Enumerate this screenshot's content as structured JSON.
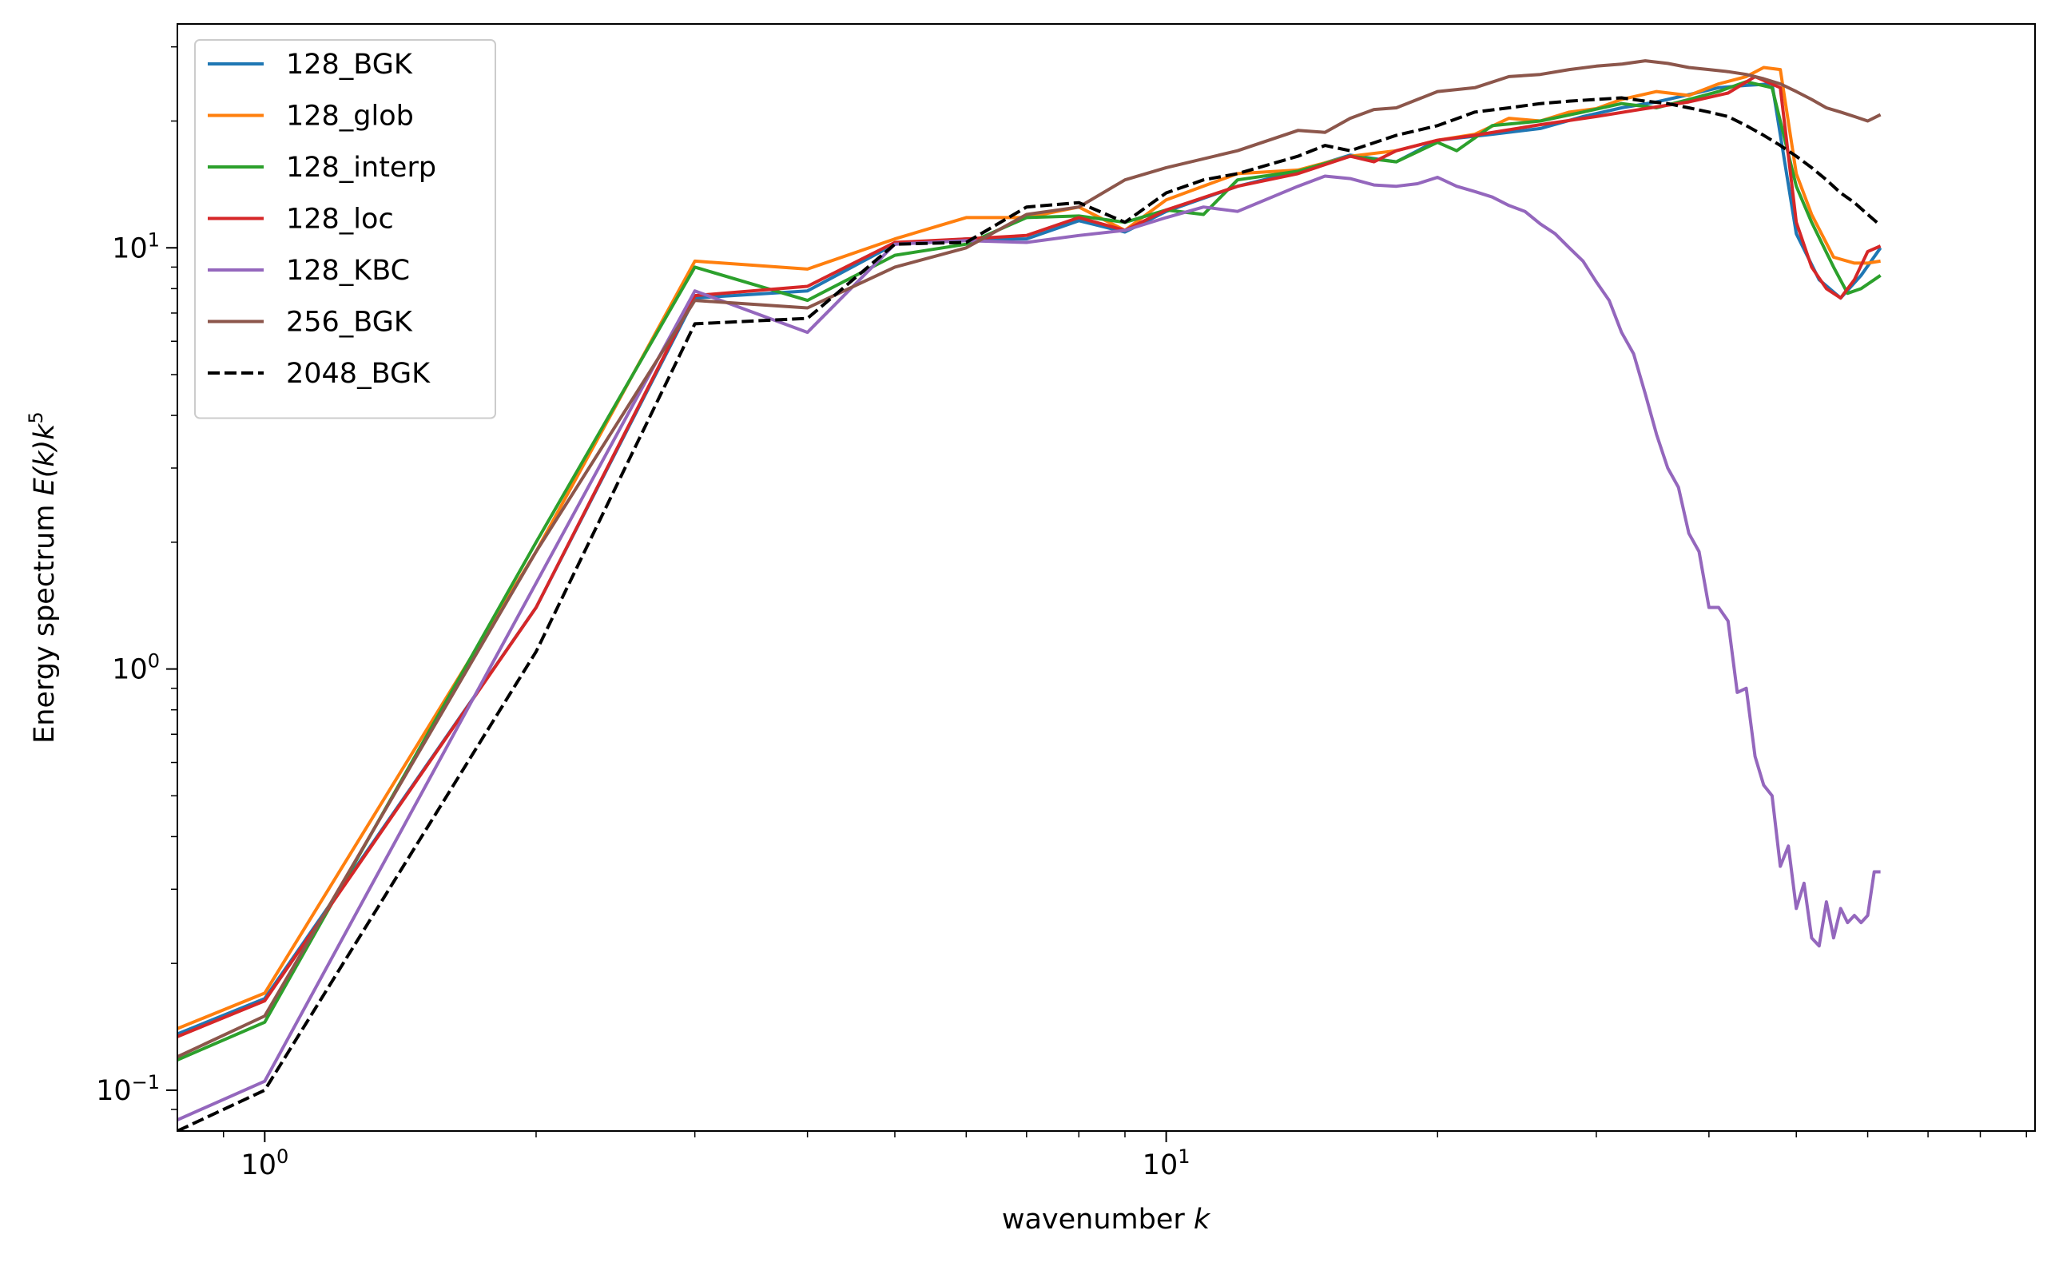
{
  "chart_data": {
    "type": "line",
    "xscale": "log",
    "yscale": "log",
    "xlim": [
      0.8,
      92
    ],
    "ylim": [
      0.08,
      34
    ],
    "xlabel_prefix": "wavenumber ",
    "xlabel_var": "k",
    "ylabel_prefix": "Energy spectrum ",
    "ylabel_var": "E(k)k",
    "ylabel_sup": "5",
    "legend_position": "upper-left",
    "grid": false,
    "x_ticks": [
      {
        "value": 1,
        "base": "10",
        "exp": "0"
      },
      {
        "value": 10,
        "base": "10",
        "exp": "1"
      }
    ],
    "y_ticks": [
      {
        "value": 0.1,
        "base": "10",
        "exp": "−1"
      },
      {
        "value": 1,
        "base": "10",
        "exp": "0"
      },
      {
        "value": 10,
        "base": "10",
        "exp": "1"
      }
    ],
    "series": [
      {
        "name": "128_BGK",
        "color": "#1f77b4",
        "dash": false,
        "x": [
          0.8,
          1,
          2,
          3,
          4,
          5,
          6,
          7,
          8,
          9,
          10,
          12,
          14,
          16,
          18,
          20,
          23,
          26,
          29,
          32,
          35,
          38,
          41,
          44,
          47,
          50,
          53,
          56,
          59,
          62
        ],
        "y": [
          0.136,
          0.165,
          1.4,
          7.6,
          7.9,
          10.2,
          10.5,
          10.5,
          11.6,
          10.9,
          12.2,
          14.0,
          15.2,
          16.6,
          16.0,
          18.0,
          18.6,
          19.2,
          20.5,
          21.5,
          22.2,
          23.1,
          24.0,
          24.3,
          24.5,
          10.8,
          8.4,
          7.6,
          8.6,
          10.0
        ]
      },
      {
        "name": "128_glob",
        "color": "#ff7f0e",
        "dash": false,
        "x": [
          0.8,
          1,
          2,
          3,
          4,
          5,
          6,
          7,
          8,
          9,
          10,
          12,
          14,
          16,
          18,
          20,
          22,
          24,
          26,
          28,
          30,
          32,
          35,
          38,
          41,
          44,
          46,
          48,
          50,
          52,
          55,
          58,
          60,
          62
        ],
        "y": [
          0.14,
          0.17,
          1.9,
          9.3,
          8.9,
          10.5,
          11.8,
          11.8,
          12.5,
          11.0,
          13.0,
          15.0,
          15.3,
          16.5,
          17.0,
          18.0,
          18.6,
          20.3,
          20.0,
          21.0,
          21.4,
          22.5,
          23.5,
          23.0,
          24.5,
          25.5,
          26.8,
          26.5,
          15.0,
          12.0,
          9.5,
          9.2,
          9.2,
          9.3
        ]
      },
      {
        "name": "128_interp",
        "color": "#2ca02c",
        "dash": false,
        "x": [
          0.8,
          1,
          2,
          3,
          4,
          5,
          6,
          7,
          8,
          9,
          10,
          11,
          12,
          14,
          16,
          18,
          20,
          21,
          23,
          26,
          29,
          32,
          35,
          38,
          41,
          44,
          47,
          50,
          52,
          55,
          57,
          59,
          62
        ],
        "y": [
          0.118,
          0.145,
          2.0,
          9.0,
          7.5,
          9.6,
          10.2,
          11.8,
          11.9,
          11.5,
          12.3,
          12.0,
          14.5,
          15.2,
          16.5,
          16.0,
          17.8,
          17.0,
          19.5,
          20.0,
          21.0,
          22.0,
          21.5,
          22.5,
          23.5,
          24.8,
          24.0,
          14.0,
          11.5,
          9.0,
          7.8,
          8.0,
          8.6
        ]
      },
      {
        "name": "128_loc",
        "color": "#d62728",
        "dash": false,
        "x": [
          0.8,
          1,
          2,
          3,
          4,
          5,
          6,
          7,
          8,
          9,
          10,
          12,
          14,
          16,
          17,
          18,
          20,
          22,
          26,
          30,
          34,
          38,
          42,
          45,
          48,
          50,
          52,
          54,
          56,
          58,
          60,
          62
        ],
        "y": [
          0.134,
          0.163,
          1.4,
          7.7,
          8.1,
          10.3,
          10.5,
          10.7,
          11.8,
          11.0,
          12.3,
          14.0,
          15.0,
          16.5,
          16.0,
          17.0,
          18.0,
          18.5,
          19.6,
          20.5,
          21.4,
          22.2,
          23.3,
          25.5,
          24.0,
          11.5,
          9.0,
          8.0,
          7.6,
          8.4,
          9.8,
          10.1
        ]
      },
      {
        "name": "128_KBC",
        "color": "#9467bd",
        "dash": false,
        "x": [
          0.8,
          1,
          2,
          3,
          4,
          5,
          6,
          7,
          8,
          9,
          10,
          11,
          12,
          14,
          15,
          16,
          17,
          18,
          19,
          20,
          21,
          22,
          23,
          24,
          25,
          26,
          27,
          28,
          29,
          30,
          31,
          32,
          33,
          34,
          35,
          36,
          37,
          38,
          39,
          40,
          41,
          42,
          43,
          44,
          45,
          46,
          47,
          48,
          49,
          50,
          51,
          52,
          53,
          54,
          55,
          56,
          57,
          58,
          59,
          60,
          61,
          62
        ],
        "y": [
          0.085,
          0.105,
          1.6,
          7.9,
          6.3,
          10.2,
          10.4,
          10.3,
          10.7,
          11.0,
          11.8,
          12.5,
          12.2,
          14.0,
          14.8,
          14.6,
          14.1,
          14.0,
          14.2,
          14.7,
          14.0,
          13.6,
          13.2,
          12.6,
          12.2,
          11.4,
          10.8,
          10.0,
          9.3,
          8.3,
          7.5,
          6.3,
          5.6,
          4.5,
          3.6,
          3.0,
          2.7,
          2.1,
          1.9,
          1.4,
          1.4,
          1.3,
          0.88,
          0.9,
          0.62,
          0.53,
          0.5,
          0.34,
          0.38,
          0.27,
          0.31,
          0.23,
          0.22,
          0.28,
          0.23,
          0.27,
          0.25,
          0.26,
          0.25,
          0.26,
          0.33,
          0.33
        ]
      },
      {
        "name": "256_BGK",
        "color": "#8c564b",
        "dash": false,
        "x": [
          0.8,
          1,
          2,
          3,
          4,
          5,
          6,
          7,
          8,
          9,
          10,
          12,
          14,
          15,
          16,
          17,
          18,
          20,
          22,
          24,
          26,
          28,
          30,
          32,
          34,
          36,
          38,
          40,
          42,
          44,
          46,
          48,
          50,
          52,
          54,
          56,
          58,
          60,
          62
        ],
        "y": [
          0.12,
          0.15,
          1.9,
          7.5,
          7.2,
          9.0,
          10.0,
          12.0,
          12.5,
          14.5,
          15.5,
          17.0,
          19.0,
          18.8,
          20.3,
          21.3,
          21.5,
          23.5,
          24.0,
          25.5,
          25.8,
          26.5,
          27.0,
          27.3,
          27.8,
          27.4,
          26.8,
          26.5,
          26.2,
          25.8,
          25.2,
          24.5,
          23.5,
          22.5,
          21.5,
          21.0,
          20.5,
          20.0,
          20.7
        ]
      },
      {
        "name": "2048_BGK",
        "color": "#000000",
        "dash": true,
        "x": [
          0.8,
          1,
          2,
          3,
          4,
          5,
          6,
          7,
          8,
          9,
          10,
          11,
          12,
          14,
          15,
          16,
          18,
          20,
          22,
          24,
          26,
          28,
          30,
          32,
          34,
          36,
          38,
          40,
          42,
          44,
          46,
          48,
          50,
          52,
          54,
          56,
          58,
          60,
          62
        ],
        "y": [
          0.08,
          0.1,
          1.1,
          6.6,
          6.8,
          10.2,
          10.3,
          12.5,
          12.8,
          11.5,
          13.5,
          14.5,
          15.0,
          16.5,
          17.5,
          17.0,
          18.5,
          19.5,
          21.0,
          21.5,
          22.0,
          22.3,
          22.5,
          22.7,
          22.3,
          22.0,
          21.5,
          21.0,
          20.5,
          19.5,
          18.5,
          17.5,
          16.5,
          15.5,
          14.5,
          13.5,
          12.8,
          12.0,
          11.3
        ]
      }
    ]
  }
}
